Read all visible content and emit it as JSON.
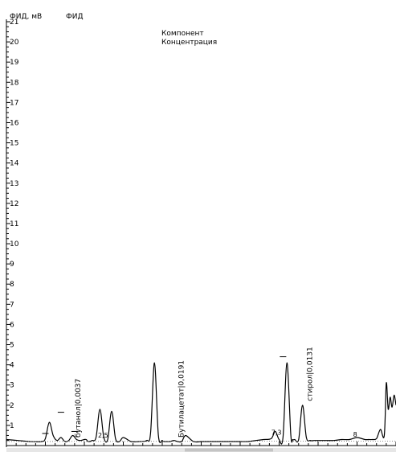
{
  "header": {
    "axis_title": "ФИД, мВ",
    "detector": "ФИД"
  },
  "legend": {
    "line1": "Компонент",
    "line2": "Концентрация"
  },
  "chart_data": {
    "type": "line",
    "title": "",
    "ylabel": "ФИД, мВ",
    "xlabel": "",
    "xlim": [
      0,
      10
    ],
    "ylim": [
      0,
      21
    ],
    "y_ticks": [
      1,
      2,
      3,
      4,
      5,
      6,
      7,
      8,
      9,
      10,
      11,
      12,
      13,
      14,
      15,
      16,
      17,
      18,
      19,
      20,
      21
    ],
    "grid": false,
    "series": [
      {
        "name": "",
        "x": [
          0.0,
          0.3,
          0.6,
          0.9,
          1.0,
          1.1,
          1.2,
          1.3,
          1.4,
          1.5,
          1.6,
          1.7,
          1.8,
          1.9,
          2.0,
          2.05,
          2.1,
          2.2,
          2.3,
          2.4,
          2.5,
          2.6,
          2.7,
          2.8,
          2.9,
          3.0,
          3.2,
          3.4,
          3.6,
          3.7,
          3.8,
          3.9,
          4.0,
          4.05,
          4.1,
          4.2,
          4.3,
          4.4,
          4.5,
          4.6,
          4.8,
          5.0,
          5.1,
          5.2,
          5.3,
          5.4,
          5.6,
          5.8,
          6.0,
          6.2,
          6.4,
          6.6,
          6.8,
          6.9,
          7.0,
          7.1,
          7.2,
          7.3,
          7.35,
          7.4,
          7.5,
          7.6,
          7.7,
          7.8,
          7.9,
          8.0,
          8.1,
          8.2,
          8.4,
          8.6,
          8.8,
          9.0,
          9.2,
          9.3,
          9.4,
          9.5,
          9.6,
          9.7,
          9.75,
          9.8,
          9.85,
          9.9,
          9.95,
          10.0
        ],
        "values": [
          0.3,
          0.25,
          0.2,
          0.2,
          0.35,
          1.15,
          0.5,
          0.25,
          0.4,
          0.2,
          0.25,
          0.5,
          0.3,
          0.25,
          0.3,
          0.3,
          0.2,
          0.25,
          0.4,
          1.8,
          0.4,
          0.3,
          1.7,
          0.35,
          0.2,
          0.4,
          0.2,
          0.2,
          0.25,
          0.6,
          4.1,
          0.5,
          0.25,
          0.2,
          0.2,
          0.2,
          0.25,
          0.2,
          0.2,
          0.5,
          0.2,
          0.2,
          0.2,
          0.2,
          0.2,
          0.2,
          0.2,
          0.2,
          0.2,
          0.2,
          0.25,
          0.3,
          0.35,
          0.7,
          0.3,
          0.4,
          4.1,
          0.5,
          0.3,
          0.3,
          0.3,
          2.0,
          0.4,
          0.25,
          0.25,
          0.25,
          0.25,
          0.25,
          0.25,
          0.3,
          0.3,
          0.4,
          0.3,
          0.3,
          0.3,
          0.35,
          0.8,
          0.5,
          3.1,
          1.8,
          2.4,
          1.9,
          2.5,
          2.0
        ]
      }
    ],
    "peak_labels": [
      {
        "text": "бутанол|0,0037",
        "x": 1.9,
        "y": 0.4
      },
      {
        "text": "Бутилацетат|0,0191",
        "x": 4.55,
        "y": 0.4
      },
      {
        "text": "стирол|0,0131",
        "x": 7.85,
        "y": 2.2
      }
    ],
    "rt_markers": [
      {
        "text": "2,5",
        "x": 2.35,
        "y": 0.35
      },
      {
        "text": "7,3",
        "x": 6.8,
        "y": 0.5
      },
      {
        "text": "8",
        "x": 8.9,
        "y": 0.4
      }
    ],
    "baseline_marks": [
      {
        "x": 1.0,
        "y": 0.6
      },
      {
        "x": 1.4,
        "y": 1.65
      },
      {
        "x": 1.75,
        "y": 0.7
      },
      {
        "x": 7.1,
        "y": 4.4
      }
    ]
  }
}
